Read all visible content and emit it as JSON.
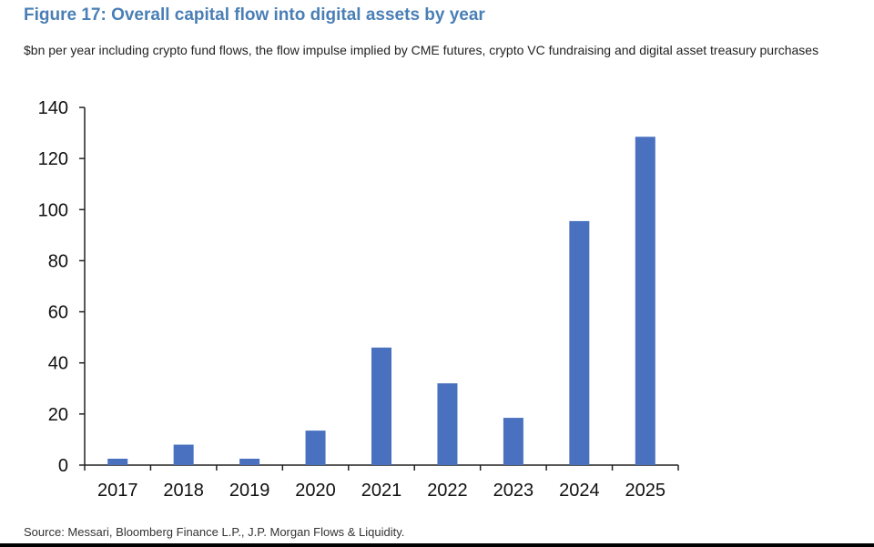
{
  "figure": {
    "title": "Figure 17: Overall capital flow into digital assets by year",
    "subtitle": "$bn per year including crypto fund flows, the flow impulse implied by CME futures, crypto VC fundraising and digital asset treasury purchases",
    "source": "Source: Messari, Bloomberg Finance L.P., J.P. Morgan Flows & Liquidity."
  },
  "colors": {
    "title": "#4a7fb5",
    "bar": "#4a71c0"
  },
  "chart_data": {
    "type": "bar",
    "title": "Figure 17: Overall capital flow into digital assets by year",
    "xlabel": "",
    "ylabel": "",
    "categories": [
      "2017",
      "2018",
      "2019",
      "2020",
      "2021",
      "2022",
      "2023",
      "2024",
      "2025"
    ],
    "values": [
      2.5,
      8,
      2.5,
      13.5,
      46,
      32,
      18.5,
      95.5,
      128.5
    ],
    "ylim": [
      0,
      140
    ],
    "yticks": [
      0,
      20,
      40,
      60,
      80,
      100,
      120,
      140
    ],
    "grid": false,
    "legend": "none"
  }
}
